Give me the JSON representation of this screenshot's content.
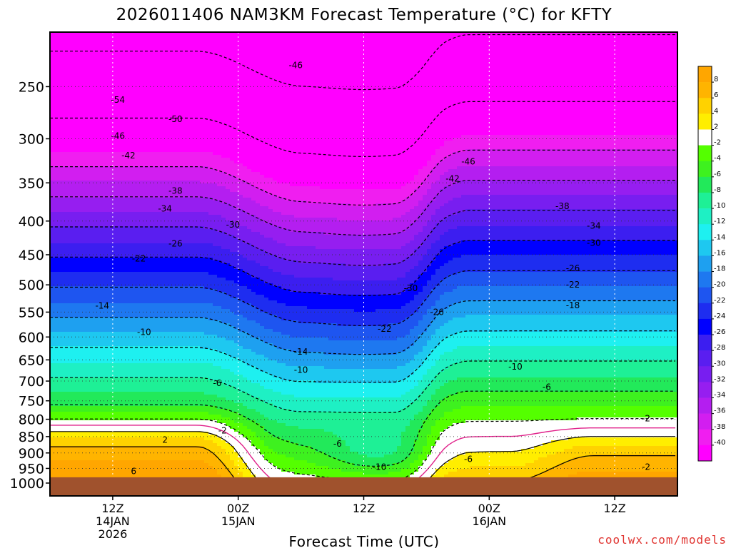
{
  "chart_data": {
    "type": "contour",
    "title": "2026011406 NAM3KM Forecast Temperature (°C) for KFTY",
    "xlabel": "Forecast Time (UTC)",
    "ylabel": "",
    "y_scale": "log",
    "y_reversed": true,
    "ylim": [
      1000,
      200
    ],
    "y_ticks": [
      "250",
      "300",
      "350",
      "400",
      "450",
      "500",
      "550",
      "600",
      "650",
      "700",
      "750",
      "800",
      "850",
      "900",
      "950",
      "1000"
    ],
    "xlim_hours_from_init": [
      0,
      60
    ],
    "x_ticks": [
      {
        "hour": 6,
        "line1": "12Z",
        "line2": "14JAN",
        "line3": "2026"
      },
      {
        "hour": 18,
        "line1": "00Z",
        "line2": "15JAN",
        "line3": ""
      },
      {
        "hour": 30,
        "line1": "12Z",
        "line2": "",
        "line3": ""
      },
      {
        "hour": 42,
        "line1": "00Z",
        "line2": "16JAN",
        "line3": ""
      },
      {
        "hour": 54,
        "line1": "12Z",
        "line2": "",
        "line3": ""
      }
    ],
    "grid": true,
    "legend": "right",
    "ground": {
      "pressure": 980,
      "color": "#a0522d"
    },
    "colorbar": {
      "orientation": "vertical",
      "levels": [
        {
          "label": "8",
          "color": "#ffa600"
        },
        {
          "label": "6",
          "color": "#ffb400"
        },
        {
          "label": "4",
          "color": "#ffd200"
        },
        {
          "label": "2",
          "color": "#ffee00"
        },
        {
          "label": "-2",
          "color": "#ffffff"
        },
        {
          "label": "-4",
          "color": "#54ff00"
        },
        {
          "label": "-6",
          "color": "#3ef11f"
        },
        {
          "label": "-8",
          "color": "#22e95a"
        },
        {
          "label": "-10",
          "color": "#1ef096"
        },
        {
          "label": "-12",
          "color": "#1ef0c4"
        },
        {
          "label": "-14",
          "color": "#1ef0f0"
        },
        {
          "label": "-16",
          "color": "#1ec8f0"
        },
        {
          "label": "-18",
          "color": "#1ea0f0"
        },
        {
          "label": "-20",
          "color": "#1e78f0"
        },
        {
          "label": "-22",
          "color": "#1e55f0"
        },
        {
          "label": "-24",
          "color": "#1e2df0"
        },
        {
          "label": "-26",
          "color": "#0000ff"
        },
        {
          "label": "-28",
          "color": "#3c1ef0"
        },
        {
          "label": "-30",
          "color": "#5a1ef0"
        },
        {
          "label": "-32",
          "color": "#781ef0"
        },
        {
          "label": "-34",
          "color": "#961ef0"
        },
        {
          "label": "-36",
          "color": "#b41ef0"
        },
        {
          "label": "-38",
          "color": "#d21ef0"
        },
        {
          "label": "-40",
          "color": "#f01ef0"
        },
        {
          "label": "",
          "color": "#ff00ff"
        }
      ]
    },
    "isotherm_labels": [
      {
        "label": "-54",
        "hour": 6.5,
        "p": 262
      },
      {
        "label": "-50",
        "hour": 12,
        "p": 280
      },
      {
        "label": "-46",
        "hour": 6.5,
        "p": 297
      },
      {
        "label": "-42",
        "hour": 7.5,
        "p": 318
      },
      {
        "label": "-46",
        "hour": 23.5,
        "p": 232
      },
      {
        "label": "-46",
        "hour": 40,
        "p": 325
      },
      {
        "label": "-42",
        "hour": 38.5,
        "p": 345
      },
      {
        "label": "-38",
        "hour": 12,
        "p": 360
      },
      {
        "label": "-38",
        "hour": 49,
        "p": 380
      },
      {
        "label": "-34",
        "hour": 11,
        "p": 383
      },
      {
        "label": "-34",
        "hour": 52,
        "p": 407
      },
      {
        "label": "-30",
        "hour": 17.5,
        "p": 405
      },
      {
        "label": "-30",
        "hour": 52,
        "p": 432
      },
      {
        "label": "-30",
        "hour": 34.5,
        "p": 506
      },
      {
        "label": "-26",
        "hour": 12,
        "p": 433
      },
      {
        "label": "-26",
        "hour": 50,
        "p": 472
      },
      {
        "label": "-26",
        "hour": 37,
        "p": 550
      },
      {
        "label": "-22",
        "hour": 8.5,
        "p": 456
      },
      {
        "label": "-22",
        "hour": 50,
        "p": 500
      },
      {
        "label": "-22",
        "hour": 32,
        "p": 583
      },
      {
        "label": "-18",
        "hour": 50,
        "p": 537
      },
      {
        "label": "-14",
        "hour": 5,
        "p": 538
      },
      {
        "label": "-14",
        "hour": 24,
        "p": 632
      },
      {
        "label": "-10",
        "hour": 9,
        "p": 590
      },
      {
        "label": "-10",
        "hour": 24,
        "p": 673
      },
      {
        "label": "-10",
        "hour": 44.5,
        "p": 666
      },
      {
        "label": "-10",
        "hour": 31.5,
        "p": 945
      },
      {
        "label": "-6",
        "hour": 16,
        "p": 705
      },
      {
        "label": "-6",
        "hour": 27.5,
        "p": 872
      },
      {
        "label": "-6",
        "hour": 40,
        "p": 920
      },
      {
        "label": "-6",
        "hour": 47.5,
        "p": 715
      },
      {
        "label": "-2",
        "hour": 16.5,
        "p": 832
      },
      {
        "label": "-2",
        "hour": 57,
        "p": 798
      },
      {
        "label": "-2",
        "hour": 57,
        "p": 945
      },
      {
        "label": "2",
        "hour": 11,
        "p": 860
      },
      {
        "label": "6",
        "hour": 8,
        "p": 960
      }
    ]
  },
  "footer": {
    "credit": "coolwx.com/models"
  }
}
